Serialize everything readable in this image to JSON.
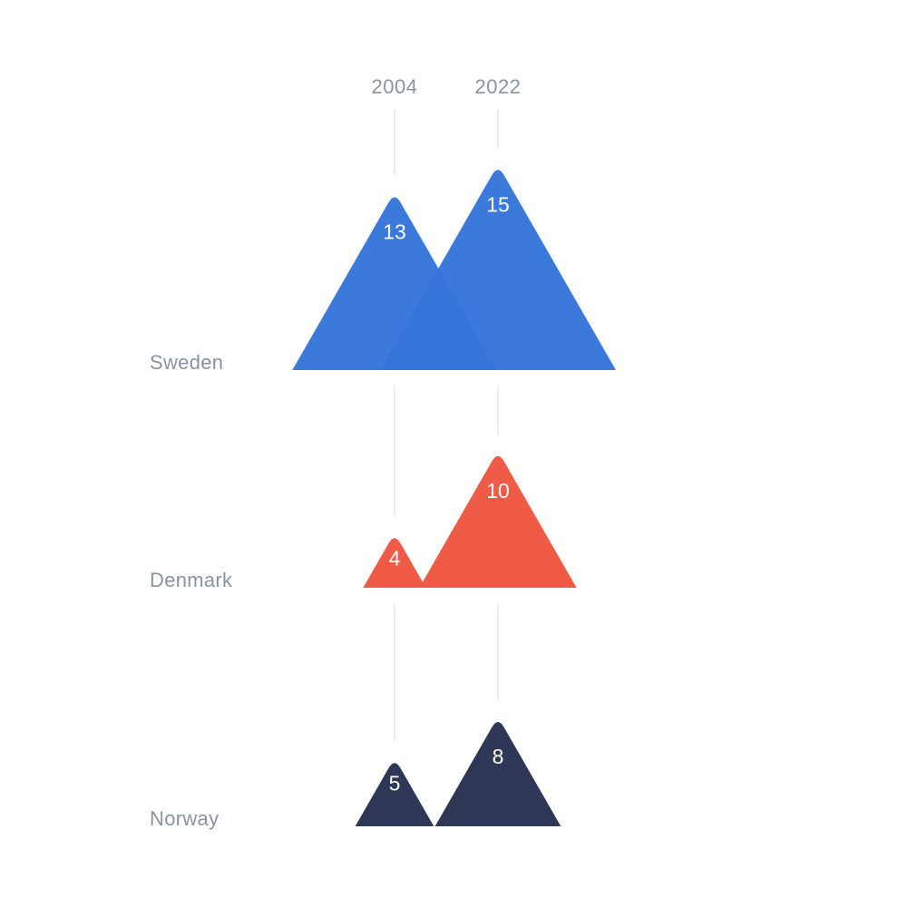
{
  "chart_data": {
    "type": "area",
    "categories": [
      "2004",
      "2022"
    ],
    "series": [
      {
        "name": "Sweden",
        "values": [
          13,
          15
        ],
        "color": "#3575d9"
      },
      {
        "name": "Denmark",
        "values": [
          4,
          10
        ],
        "color": "#ef5641"
      },
      {
        "name": "Norway",
        "values": [
          5,
          8
        ],
        "color": "#283151"
      }
    ],
    "title": "",
    "xlabel": "",
    "ylabel": "",
    "grid": false,
    "legend": "none"
  }
}
